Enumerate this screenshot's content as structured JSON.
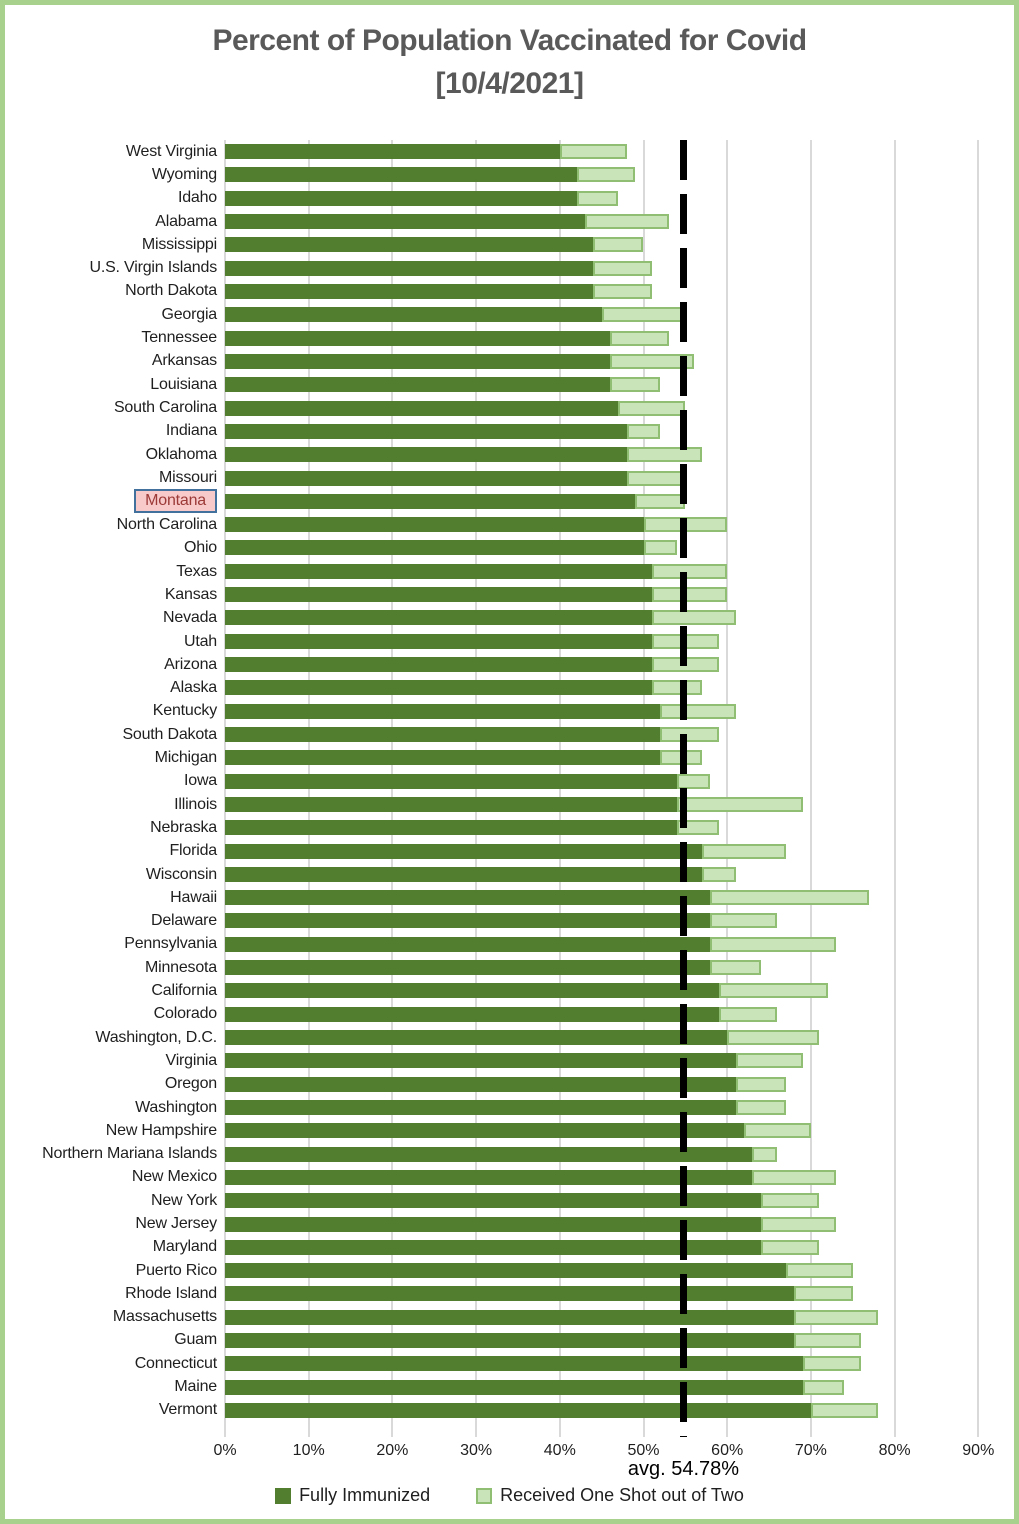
{
  "title": {
    "line1": "Percent of Population Vaccinated for Covid",
    "line2": "[10/4/2021]"
  },
  "highlighted_category": "Montana",
  "colors": {
    "title_text": "#595959",
    "frame_border": "#a9d18e",
    "gridline": "#d9d9d9",
    "fully_immunized": "#527e2f",
    "one_shot_fill": "#c9e4b8",
    "one_shot_border": "#90bf74",
    "average_line": "#000000",
    "highlight_bg": "#f8caca",
    "highlight_border": "#41719c",
    "highlight_text": "#9c3a38"
  },
  "chart_data": {
    "type": "bar",
    "orientation": "horizontal",
    "stacked": true,
    "title": "Percent of Population Vaccinated for Covid [10/4/2021]",
    "categories": [
      "West Virginia",
      "Wyoming",
      "Idaho",
      "Alabama",
      "Mississippi",
      "U.S. Virgin Islands",
      "North Dakota",
      "Georgia",
      "Tennessee",
      "Arkansas",
      "Louisiana",
      "South Carolina",
      "Indiana",
      "Oklahoma",
      "Missouri",
      "Montana",
      "North Carolina",
      "Ohio",
      "Texas",
      "Kansas",
      "Nevada",
      "Utah",
      "Arizona",
      "Alaska",
      "Kentucky",
      "South Dakota",
      "Michigan",
      "Iowa",
      "Illinois",
      "Nebraska",
      "Florida",
      "Wisconsin",
      "Hawaii",
      "Delaware",
      "Pennsylvania",
      "Minnesota",
      "California",
      "Colorado",
      "Washington, D.C.",
      "Virginia",
      "Oregon",
      "Washington",
      "New Hampshire",
      "Northern Mariana Islands",
      "New Mexico",
      "New York",
      "New Jersey",
      "Maryland",
      "Puerto Rico",
      "Rhode Island",
      "Massachusetts",
      "Guam",
      "Connecticut",
      "Maine",
      "Vermont"
    ],
    "series": [
      {
        "name": "Fully Immunized",
        "values": [
          40,
          42,
          42,
          43,
          44,
          44,
          44,
          45,
          46,
          46,
          46,
          47,
          48,
          48,
          48,
          49,
          50,
          50,
          51,
          51,
          51,
          51,
          51,
          51,
          52,
          52,
          52,
          54,
          54,
          54,
          57,
          57,
          58,
          58,
          58,
          58,
          59,
          59,
          60,
          61,
          61,
          61,
          62,
          63,
          63,
          64,
          64,
          64,
          67,
          68,
          68,
          68,
          69,
          69,
          70
        ]
      },
      {
        "name": "Received One Shot out of Two",
        "values": [
          8,
          7,
          5,
          10,
          6,
          7,
          7,
          10,
          7,
          10,
          6,
          8,
          4,
          9,
          7,
          6,
          10,
          4,
          9,
          9,
          10,
          8,
          8,
          6,
          9,
          7,
          5,
          4,
          15,
          5,
          10,
          4,
          19,
          8,
          15,
          6,
          13,
          7,
          11,
          8,
          6,
          6,
          8,
          3,
          10,
          7,
          9,
          7,
          8,
          7,
          10,
          8,
          7,
          5,
          8
        ]
      }
    ],
    "bar_totals": [
      48,
      49,
      47,
      53,
      50,
      51,
      51,
      55,
      53,
      56,
      52,
      55,
      52,
      57,
      55,
      55,
      60,
      54,
      60,
      60,
      61,
      59,
      59,
      57,
      61,
      59,
      57,
      58,
      69,
      59,
      67,
      61,
      77,
      66,
      73,
      64,
      72,
      66,
      71,
      69,
      67,
      67,
      70,
      66,
      73,
      71,
      73,
      71,
      75,
      75,
      78,
      76,
      76,
      74,
      78
    ],
    "x_ticks": [
      0,
      10,
      20,
      30,
      40,
      50,
      60,
      70,
      80,
      90
    ],
    "x_tick_labels": [
      "0%",
      "10%",
      "20%",
      "30%",
      "40%",
      "50%",
      "60%",
      "70%",
      "80%",
      "90%"
    ],
    "xlim": [
      0,
      92.7
    ],
    "grid": "vertical",
    "legend_position": "bottom",
    "average_line": {
      "value": 54.78,
      "label": "avg. 54.78%"
    }
  }
}
